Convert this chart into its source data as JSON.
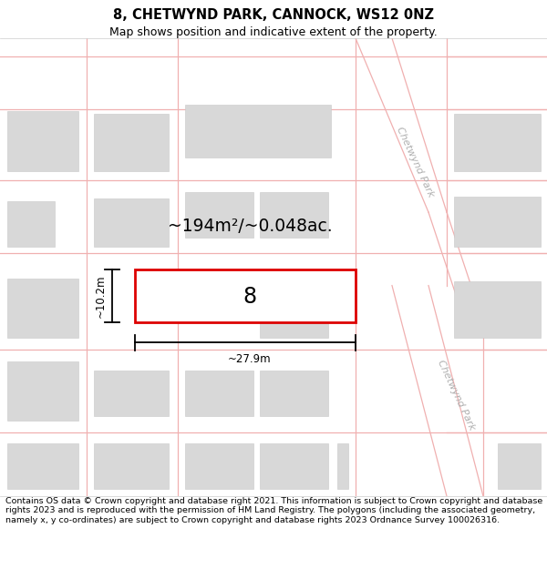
{
  "title": "8, CHETWYND PARK, CANNOCK, WS12 0NZ",
  "subtitle": "Map shows position and indicative extent of the property.",
  "footer": "Contains OS data © Crown copyright and database right 2021. This information is subject to Crown copyright and database rights 2023 and is reproduced with the permission of HM Land Registry. The polygons (including the associated geometry, namely x, y co-ordinates) are subject to Crown copyright and database rights 2023 Ordnance Survey 100026316.",
  "map_bg": "#f8f8f8",
  "street_color": "#f0b0b0",
  "building_color": "#d8d8d8",
  "building_edge": "#c8c8c8",
  "road_fill": "#ffffff",
  "plot_color": "#dd0000",
  "road_label": "Chetwynd Park",
  "plot_label": "8",
  "area_label": "~194m²/~0.048ac.",
  "width_label": "~27.9m",
  "height_label": "~10.2m",
  "title_fontsize": 10.5,
  "subtitle_fontsize": 9,
  "footer_fontsize": 6.8
}
